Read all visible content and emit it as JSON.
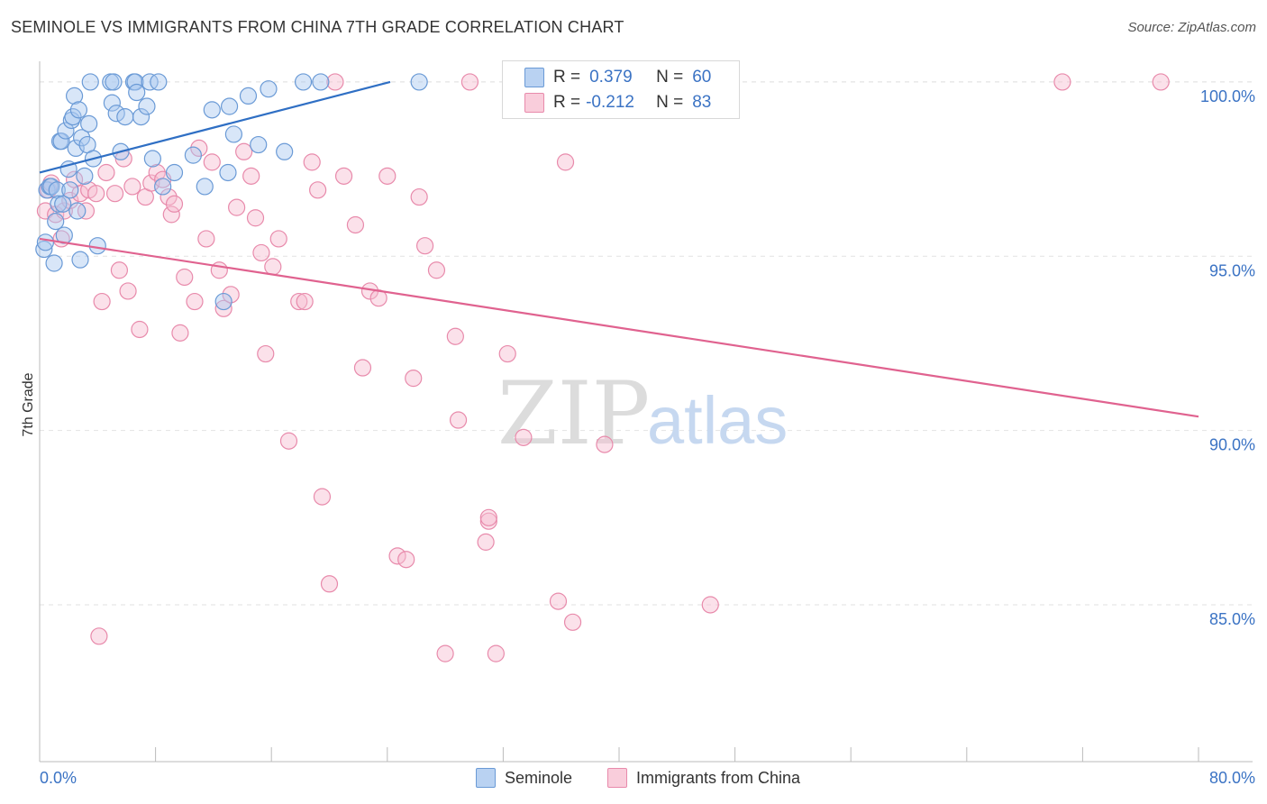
{
  "title": "SEMINOLE VS IMMIGRANTS FROM CHINA 7TH GRADE CORRELATION CHART",
  "source": "Source: ZipAtlas.com",
  "watermark": {
    "zip": "ZIP",
    "atlas": "atlas"
  },
  "legend_stats": {
    "seminole": {
      "r_label": "R =",
      "r_value": "0.379",
      "n_label": "N =",
      "n_value": "60"
    },
    "china": {
      "r_label": "R =",
      "r_value": "-0.212",
      "n_label": "N =",
      "n_value": "83"
    }
  },
  "bottom_legend": {
    "seminole": "Seminole",
    "china": "Immigrants from China"
  },
  "colors": {
    "seminole_fill": "#a9c8ef",
    "seminole_stroke": "#6a9ad6",
    "seminole_line": "#2f6fc4",
    "china_fill": "#f6bdd0",
    "china_stroke": "#e88aab",
    "china_line": "#e0628f",
    "axis_label": "#3b73c4",
    "grid": "#e2e2e2"
  },
  "chart_data": {
    "type": "scatter",
    "title": "SEMINOLE VS IMMIGRANTS FROM CHINA 7TH GRADE CORRELATION CHART",
    "xlabel": "",
    "ylabel": "7th Grade",
    "xlim": [
      0,
      80
    ],
    "ylim": [
      80.5,
      100.8
    ],
    "x_tick_labels": [
      "0.0%",
      "80.0%"
    ],
    "y_ticks": [
      85,
      90,
      95,
      100
    ],
    "y_tick_labels": [
      "85.0%",
      "90.0%",
      "95.0%",
      "100.0%"
    ],
    "series": [
      {
        "name": "Seminole",
        "trend": {
          "x": [
            0,
            24.2
          ],
          "y": [
            97.4,
            100.0
          ]
        },
        "points": [
          [
            0.3,
            95.2
          ],
          [
            0.4,
            95.4
          ],
          [
            0.5,
            96.9
          ],
          [
            0.7,
            97.0
          ],
          [
            0.8,
            97.0
          ],
          [
            1.0,
            94.8
          ],
          [
            1.1,
            96.0
          ],
          [
            1.2,
            96.9
          ],
          [
            1.3,
            96.5
          ],
          [
            1.4,
            98.3
          ],
          [
            1.5,
            98.3
          ],
          [
            1.6,
            96.5
          ],
          [
            1.7,
            95.6
          ],
          [
            1.8,
            98.6
          ],
          [
            2.0,
            97.5
          ],
          [
            2.1,
            96.9
          ],
          [
            2.2,
            98.9
          ],
          [
            2.3,
            99.0
          ],
          [
            2.4,
            99.6
          ],
          [
            2.5,
            98.1
          ],
          [
            2.6,
            96.3
          ],
          [
            2.7,
            99.2
          ],
          [
            2.8,
            94.9
          ],
          [
            2.9,
            98.4
          ],
          [
            3.1,
            97.3
          ],
          [
            3.3,
            98.2
          ],
          [
            3.4,
            98.8
          ],
          [
            3.5,
            100.0
          ],
          [
            3.7,
            97.8
          ],
          [
            4.0,
            95.3
          ],
          [
            4.9,
            100.0
          ],
          [
            5.0,
            99.4
          ],
          [
            5.1,
            100.0
          ],
          [
            5.3,
            99.1
          ],
          [
            5.6,
            98.0
          ],
          [
            5.9,
            99.0
          ],
          [
            6.5,
            100.0
          ],
          [
            6.6,
            100.0
          ],
          [
            6.7,
            99.7
          ],
          [
            7.0,
            99.0
          ],
          [
            7.4,
            99.3
          ],
          [
            7.6,
            100.0
          ],
          [
            7.8,
            97.8
          ],
          [
            8.2,
            100.0
          ],
          [
            9.3,
            97.4
          ],
          [
            10.6,
            97.9
          ],
          [
            11.9,
            99.2
          ],
          [
            12.7,
            93.7
          ],
          [
            13.0,
            97.4
          ],
          [
            13.1,
            99.3
          ],
          [
            13.4,
            98.5
          ],
          [
            14.4,
            99.6
          ],
          [
            15.1,
            98.2
          ],
          [
            15.8,
            99.8
          ],
          [
            16.9,
            98.0
          ],
          [
            18.2,
            100.0
          ],
          [
            11.4,
            97.0
          ],
          [
            8.5,
            97.0
          ],
          [
            19.4,
            100.0
          ],
          [
            26.2,
            100.0
          ]
        ]
      },
      {
        "name": "Immigrants from China",
        "trend": {
          "x": [
            0,
            80
          ],
          "y": [
            95.5,
            90.4
          ]
        },
        "points": [
          [
            0.4,
            96.3
          ],
          [
            0.6,
            96.9
          ],
          [
            0.8,
            97.1
          ],
          [
            1.1,
            96.2
          ],
          [
            1.5,
            95.5
          ],
          [
            1.7,
            96.3
          ],
          [
            2.1,
            96.6
          ],
          [
            2.4,
            97.2
          ],
          [
            2.8,
            96.8
          ],
          [
            3.2,
            96.3
          ],
          [
            3.4,
            96.9
          ],
          [
            3.9,
            96.8
          ],
          [
            4.3,
            93.7
          ],
          [
            4.6,
            97.4
          ],
          [
            5.2,
            96.8
          ],
          [
            5.5,
            94.6
          ],
          [
            5.8,
            97.8
          ],
          [
            6.4,
            97.0
          ],
          [
            6.9,
            92.9
          ],
          [
            7.3,
            96.7
          ],
          [
            7.7,
            97.1
          ],
          [
            8.1,
            97.4
          ],
          [
            8.5,
            97.2
          ],
          [
            8.9,
            96.7
          ],
          [
            9.1,
            96.2
          ],
          [
            9.7,
            92.8
          ],
          [
            10.0,
            94.4
          ],
          [
            10.7,
            93.7
          ],
          [
            11.0,
            98.1
          ],
          [
            11.5,
            95.5
          ],
          [
            11.9,
            97.7
          ],
          [
            12.4,
            94.6
          ],
          [
            12.7,
            93.5
          ],
          [
            13.2,
            93.9
          ],
          [
            13.6,
            96.4
          ],
          [
            14.1,
            98.0
          ],
          [
            14.6,
            97.3
          ],
          [
            14.9,
            96.1
          ],
          [
            15.3,
            95.1
          ],
          [
            15.6,
            92.2
          ],
          [
            16.1,
            94.7
          ],
          [
            16.5,
            95.5
          ],
          [
            17.2,
            89.7
          ],
          [
            17.9,
            93.7
          ],
          [
            18.3,
            93.7
          ],
          [
            18.8,
            97.7
          ],
          [
            19.2,
            96.9
          ],
          [
            19.5,
            88.1
          ],
          [
            20.0,
            85.6
          ],
          [
            20.4,
            100.0
          ],
          [
            21.0,
            97.3
          ],
          [
            21.8,
            95.9
          ],
          [
            22.3,
            91.8
          ],
          [
            22.8,
            94.0
          ],
          [
            23.4,
            93.8
          ],
          [
            24.0,
            97.3
          ],
          [
            24.7,
            86.4
          ],
          [
            25.3,
            86.3
          ],
          [
            25.8,
            91.5
          ],
          [
            26.2,
            96.7
          ],
          [
            26.6,
            95.3
          ],
          [
            27.4,
            94.6
          ],
          [
            28.0,
            83.6
          ],
          [
            28.7,
            92.7
          ],
          [
            28.9,
            90.3
          ],
          [
            29.7,
            100.0
          ],
          [
            30.8,
            86.8
          ],
          [
            31.0,
            87.4
          ],
          [
            31.5,
            83.6
          ],
          [
            32.3,
            92.2
          ],
          [
            33.0,
            100.0
          ],
          [
            33.4,
            89.8
          ],
          [
            35.8,
            85.1
          ],
          [
            36.3,
            97.7
          ],
          [
            36.8,
            84.5
          ],
          [
            39.0,
            89.6
          ],
          [
            46.3,
            85.0
          ],
          [
            70.6,
            100.0
          ],
          [
            77.4,
            100.0
          ],
          [
            4.1,
            84.1
          ],
          [
            6.1,
            94.0
          ],
          [
            9.3,
            96.5
          ],
          [
            31.0,
            87.5
          ]
        ]
      }
    ]
  }
}
